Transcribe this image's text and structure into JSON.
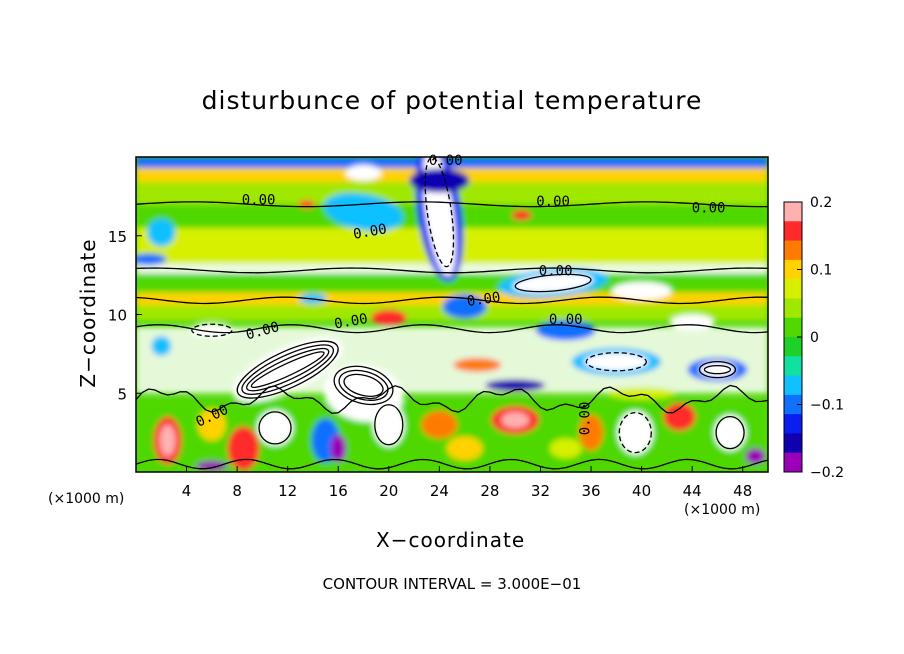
{
  "chart_data": {
    "type": "heatmap",
    "title": "disturbunce of potential temperature",
    "xlabel": "X−coordinate",
    "ylabel": "Z−coordinate",
    "x_unit": "(×1000 m)",
    "x_unit_right": "(×1000 m)",
    "xlim": [
      0,
      50
    ],
    "ylim": [
      0,
      20
    ],
    "x_ticks": [
      4,
      8,
      12,
      16,
      20,
      24,
      28,
      32,
      36,
      40,
      44,
      48
    ],
    "y_ticks": [
      5,
      10,
      15
    ],
    "colorbar": {
      "range": [
        -0.2,
        0.2
      ],
      "tick_values": [
        0.2,
        0.1,
        0,
        -0.1,
        -0.2
      ],
      "tick_labels": [
        "0.2",
        "0.1",
        "0",
        "−0.1",
        "−0.2"
      ],
      "colors": [
        "#ffb0b0",
        "#ff2a2a",
        "#ff7a00",
        "#ffd200",
        "#d6f000",
        "#a0e800",
        "#50d800",
        "#20d02a",
        "#10e0a0",
        "#10c0ff",
        "#1070ff",
        "#0a1ef0",
        "#1000b0",
        "#9a00b8"
      ]
    },
    "contour_labels": [
      "0.00",
      "0.00",
      "0.00",
      "0.00",
      "0.00",
      "0.00",
      "0.00",
      "0.00",
      "0.00",
      "0.00",
      "0.00",
      "0.00"
    ],
    "footnote": "CONTOUR INTERVAL = 3.000E−01"
  }
}
